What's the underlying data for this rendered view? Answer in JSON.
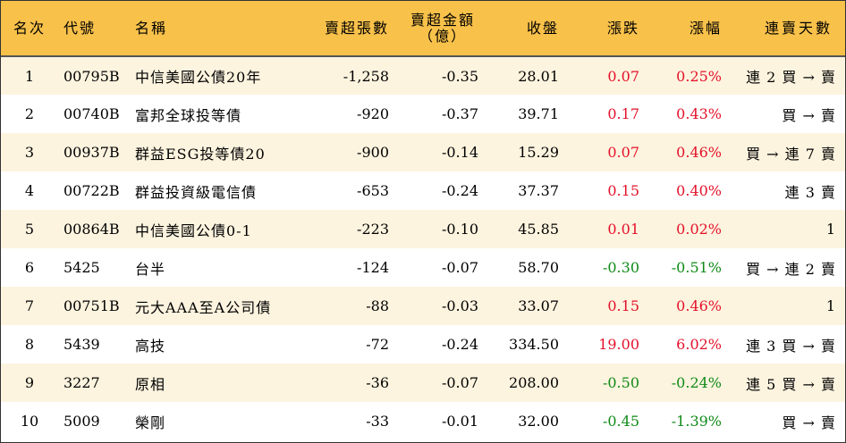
{
  "headers": {
    "rank": "名次",
    "code": "代號",
    "name": "名稱",
    "net_sell_lots": "賣超張數",
    "net_sell_amount_line1": "賣超金額",
    "net_sell_amount_line2": "（億）",
    "close": "收盤",
    "change": "漲跌",
    "change_pct": "漲幅",
    "sell_days": "連賣天數"
  },
  "colors": {
    "header_bg": "#f8c14a",
    "odd_row_bg": "#fdf4df",
    "up": "#e3112a",
    "down": "#0f8a17"
  },
  "rows": [
    {
      "rank": "1",
      "code": "00795B",
      "name": "中信美國公債20年",
      "lots": "-1,258",
      "amount": "-0.35",
      "close": "28.01",
      "change": "0.07",
      "pct": "0.25%",
      "dir": "up",
      "days": "連 2 買 → 賣"
    },
    {
      "rank": "2",
      "code": "00740B",
      "name": "富邦全球投等債",
      "lots": "-920",
      "amount": "-0.37",
      "close": "39.71",
      "change": "0.17",
      "pct": "0.43%",
      "dir": "up",
      "days": "買 → 賣"
    },
    {
      "rank": "3",
      "code": "00937B",
      "name": "群益ESG投等債20",
      "lots": "-900",
      "amount": "-0.14",
      "close": "15.29",
      "change": "0.07",
      "pct": "0.46%",
      "dir": "up",
      "days": "買 → 連 7 賣"
    },
    {
      "rank": "4",
      "code": "00722B",
      "name": "群益投資級電信債",
      "lots": "-653",
      "amount": "-0.24",
      "close": "37.37",
      "change": "0.15",
      "pct": "0.40%",
      "dir": "up",
      "days": "連 3 賣"
    },
    {
      "rank": "5",
      "code": "00864B",
      "name": "中信美國公債0-1",
      "lots": "-223",
      "amount": "-0.10",
      "close": "45.85",
      "change": "0.01",
      "pct": "0.02%",
      "dir": "up",
      "days": "1"
    },
    {
      "rank": "6",
      "code": "5425",
      "name": "台半",
      "lots": "-124",
      "amount": "-0.07",
      "close": "58.70",
      "change": "-0.30",
      "pct": "-0.51%",
      "dir": "down",
      "days": "買 → 連 2 賣"
    },
    {
      "rank": "7",
      "code": "00751B",
      "name": "元大AAA至A公司債",
      "lots": "-88",
      "amount": "-0.03",
      "close": "33.07",
      "change": "0.15",
      "pct": "0.46%",
      "dir": "up",
      "days": "1"
    },
    {
      "rank": "8",
      "code": "5439",
      "name": "高技",
      "lots": "-72",
      "amount": "-0.24",
      "close": "334.50",
      "change": "19.00",
      "pct": "6.02%",
      "dir": "up",
      "days": "連 3 買 → 賣"
    },
    {
      "rank": "9",
      "code": "3227",
      "name": "原相",
      "lots": "-36",
      "amount": "-0.07",
      "close": "208.00",
      "change": "-0.50",
      "pct": "-0.24%",
      "dir": "down",
      "days": "連 5 買 → 賣"
    },
    {
      "rank": "10",
      "code": "5009",
      "name": "榮剛",
      "lots": "-33",
      "amount": "-0.01",
      "close": "32.00",
      "change": "-0.45",
      "pct": "-1.39%",
      "dir": "down",
      "days": "買 → 賣"
    }
  ]
}
